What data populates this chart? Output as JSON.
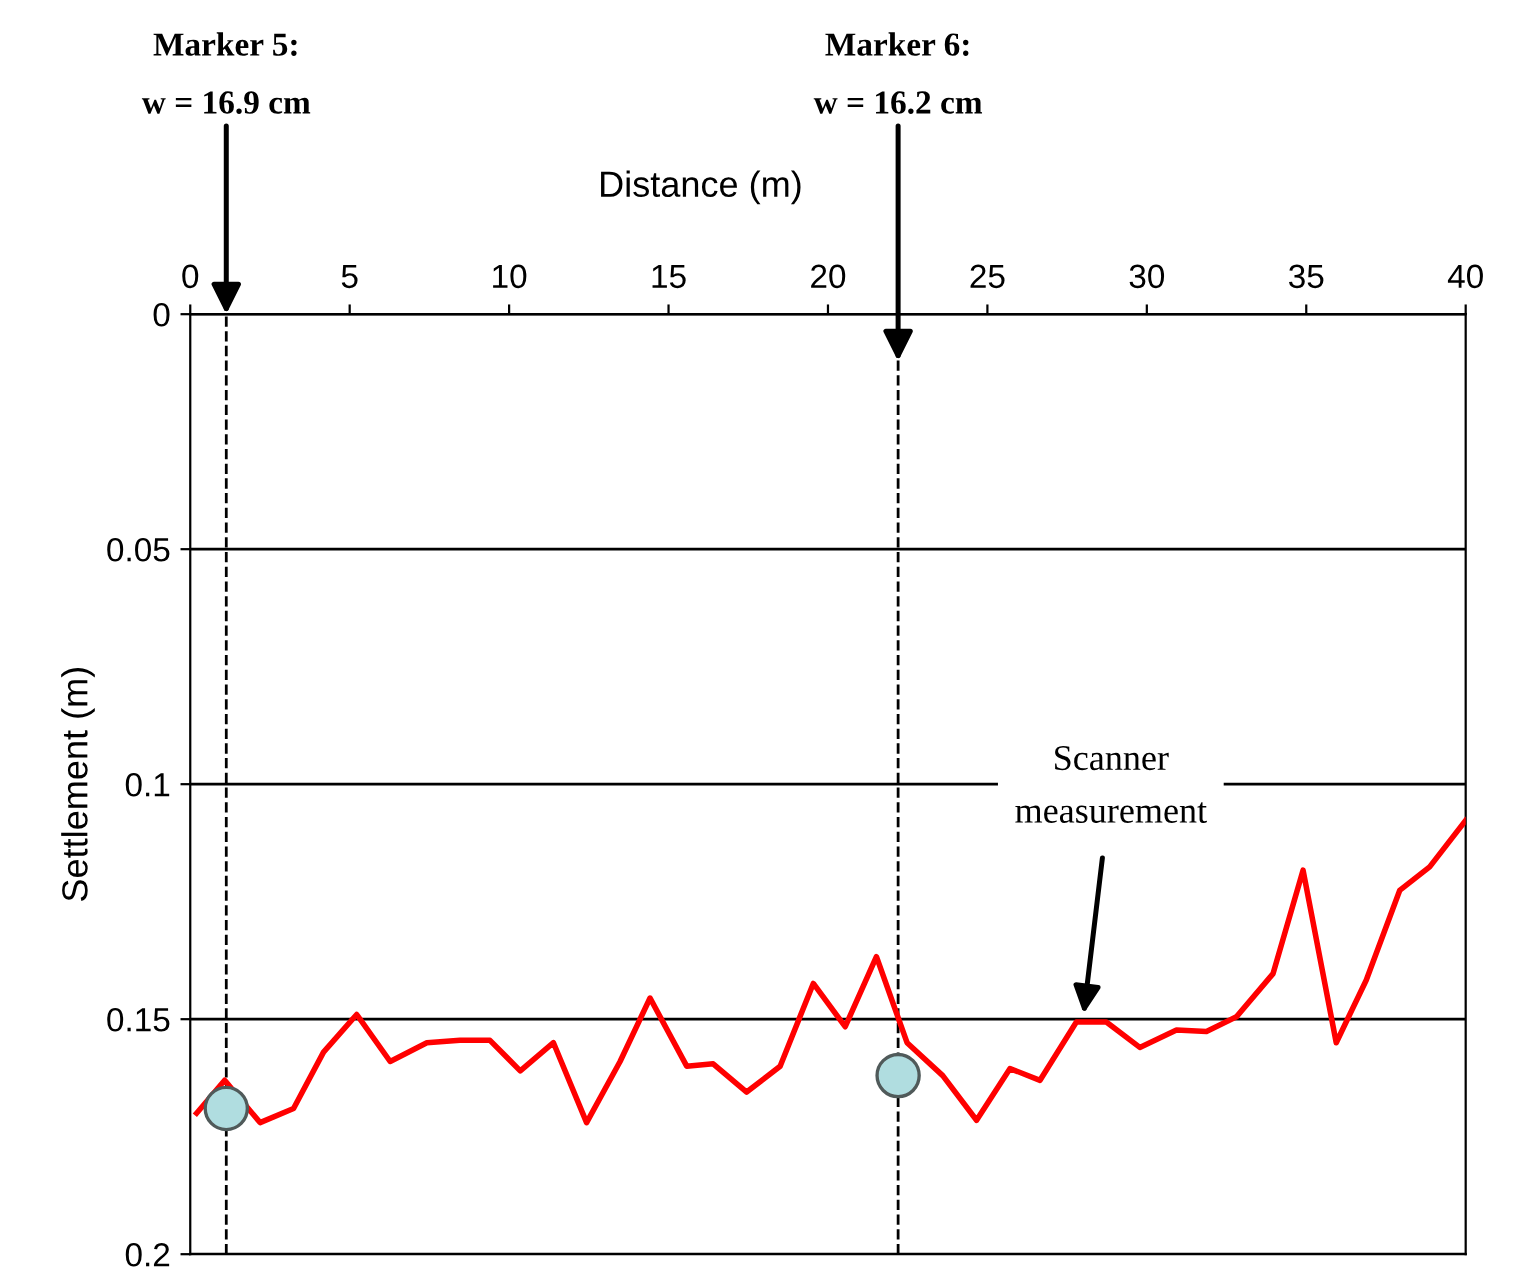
{
  "chart_data": {
    "type": "line",
    "xlabel": "Distance (m)",
    "ylabel": "Settlement (m)",
    "xlim": [
      0,
      40
    ],
    "xticks": [
      0,
      5,
      10,
      15,
      20,
      25,
      30,
      35,
      40
    ],
    "ylim": [
      0.2,
      0
    ],
    "yticks": [
      0,
      0.05,
      0.1,
      0.15,
      0.2
    ],
    "grid": "y",
    "marker": "none",
    "line_style": "solid",
    "series": [
      {
        "type": "line",
        "color": "#ff0000",
        "x": [
          0.2,
          1.08,
          2.19,
          3.24,
          4.18,
          5.22,
          6.27,
          7.42,
          8.46,
          9.4,
          10.35,
          11.39,
          12.43,
          13.48,
          14.42,
          15.57,
          16.4,
          17.45,
          18.5,
          19.54,
          20.54,
          21.52,
          22.48,
          23.6,
          24.66,
          25.71,
          26.65,
          27.79,
          28.73,
          29.78,
          30.93,
          31.87,
          32.81,
          33.96,
          34.9,
          35.94,
          36.88,
          37.93,
          38.87,
          40.0
        ],
        "values": [
          0.17,
          0.163,
          0.172,
          0.169,
          0.157,
          0.149,
          0.159,
          0.155,
          0.1545,
          0.1545,
          0.161,
          0.155,
          0.172,
          0.159,
          0.1455,
          0.16,
          0.1595,
          0.1655,
          0.16,
          0.1424,
          0.1516,
          0.1367,
          0.155,
          0.162,
          0.1715,
          0.1605,
          0.163,
          0.1506,
          0.1506,
          0.156,
          0.1523,
          0.1526,
          0.1495,
          0.1403,
          0.1183,
          0.155,
          0.1417,
          0.1226,
          0.1176,
          0.1077
        ]
      },
      {
        "type": "scatter",
        "color": "#b0dde0",
        "marker": "circle",
        "x": [
          1.13,
          22.2
        ],
        "values": [
          0.169,
          0.162
        ]
      }
    ],
    "ref_lines": [
      {
        "axis": "x",
        "value": 1.13,
        "color": "#000000",
        "line_style": "dashed"
      },
      {
        "axis": "x",
        "value": 22.2,
        "color": "#000000",
        "line_style": "dashed"
      }
    ],
    "annotations": [
      {
        "text": "Marker 5:\nw = 16.9 cm",
        "x": 1.13,
        "y": 0
      },
      {
        "text": "Marker 6:\nw = 16.2 cm",
        "x": 22.2,
        "y": 0.01
      },
      {
        "text": "Scanner\nmeasurement",
        "x": 28,
        "y": 0.15
      }
    ]
  }
}
